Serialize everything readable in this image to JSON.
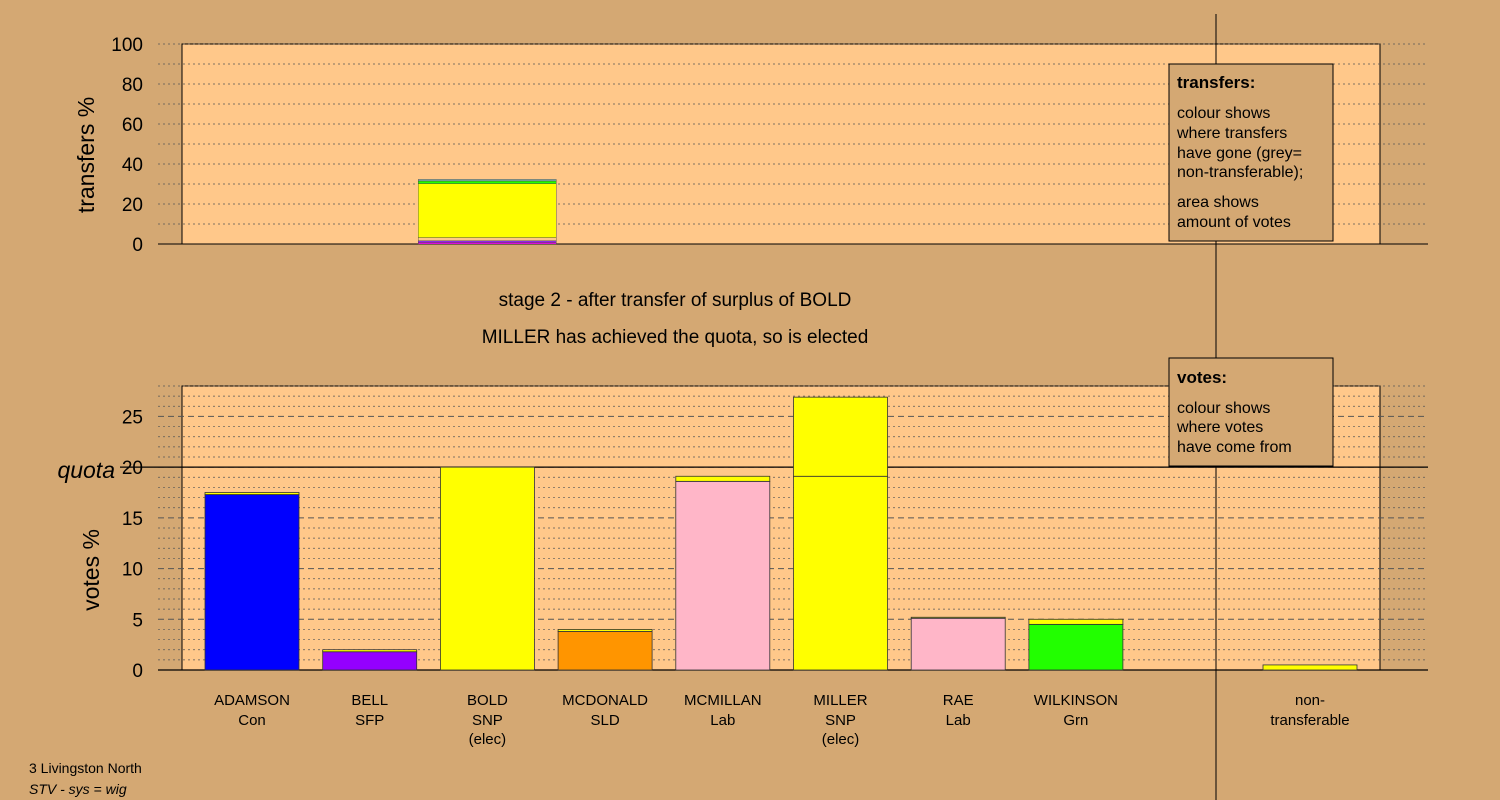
{
  "chart_data": [
    {
      "type": "bar",
      "stacked": true,
      "ylabel": "transfers %",
      "ylim": [
        0,
        100
      ],
      "yticks": [
        0,
        20,
        40,
        60,
        80,
        100
      ],
      "bars": [
        {
          "category_index": 2,
          "segments": [
            {
              "value": 0.8,
              "color": "#ff00ff"
            },
            {
              "value": 0.8,
              "color": "#8a2be2"
            },
            {
              "value": 1.6,
              "color": "#ffc88a"
            },
            {
              "value": 27.0,
              "color": "#ffff00"
            },
            {
              "value": 1.3,
              "color": "#22ff00"
            },
            {
              "value": 0.8,
              "color": "#7fb0b0"
            }
          ]
        }
      ],
      "legend": {
        "heading": "transfers:",
        "lines1": [
          "colour shows",
          "where transfers",
          "have gone (grey=",
          "non-transferable);"
        ],
        "lines2": [
          "area shows",
          "amount of votes"
        ]
      }
    },
    {
      "type": "bar",
      "stacked": true,
      "ylabel": "votes %",
      "ylim": [
        0,
        28
      ],
      "yticks": [
        0,
        5,
        10,
        15,
        20,
        25
      ],
      "quota": 20,
      "quota_label": "quota",
      "categories": [
        {
          "name": "ADAMSON",
          "party": "Con",
          "elected": "",
          "segments": [
            {
              "value": 17.3,
              "color": "#0000ff"
            },
            {
              "value": 0.2,
              "color": "#ffff00"
            }
          ]
        },
        {
          "name": "BELL",
          "party": "SFP",
          "elected": "",
          "segments": [
            {
              "value": 1.8,
              "color": "#9400ff"
            },
            {
              "value": 0.2,
              "color": "#ffff00"
            }
          ]
        },
        {
          "name": "BOLD",
          "party": "SNP",
          "elected": "(elec)",
          "segments": [
            {
              "value": 20.0,
              "color": "#ffff00"
            }
          ]
        },
        {
          "name": "MCDONALD",
          "party": "SLD",
          "elected": "",
          "segments": [
            {
              "value": 3.8,
              "color": "#ff9500"
            },
            {
              "value": 0.2,
              "color": "#ffff00"
            }
          ]
        },
        {
          "name": "MCMILLAN",
          "party": "Lab",
          "elected": "",
          "segments": [
            {
              "value": 18.6,
              "color": "#ffb6c8"
            },
            {
              "value": 0.5,
              "color": "#ffff00"
            }
          ]
        },
        {
          "name": "MILLER",
          "party": "SNP",
          "elected": "(elec)",
          "segments": [
            {
              "value": 19.1,
              "color": "#ffff00"
            },
            {
              "value": 7.8,
              "color": "#ffff00"
            }
          ]
        },
        {
          "name": "RAE",
          "party": "Lab",
          "elected": "",
          "segments": [
            {
              "value": 5.1,
              "color": "#ffb6c8"
            },
            {
              "value": 0.1,
              "color": "#ffff00"
            }
          ]
        },
        {
          "name": "WILKINSON",
          "party": "Grn",
          "elected": "",
          "segments": [
            {
              "value": 4.5,
              "color": "#22ff00"
            },
            {
              "value": 0.5,
              "color": "#ffff00"
            }
          ]
        }
      ],
      "non_transferable": {
        "label1": "non-",
        "label2": "transferable",
        "value": 0.5,
        "color": "#ffff00"
      },
      "legend": {
        "heading": "votes:",
        "lines": [
          "colour shows",
          "where votes",
          "have come from"
        ]
      }
    }
  ],
  "stage_title": "stage 2 - after transfer of surplus of BOLD",
  "status_text": "MILLER has achieved the quota, so is elected",
  "footer": {
    "ward": "3 Livingston North",
    "system": "STV - sys = wig"
  },
  "colors": {
    "background": "#d4a873",
    "plot_area": "#ffc88a"
  }
}
